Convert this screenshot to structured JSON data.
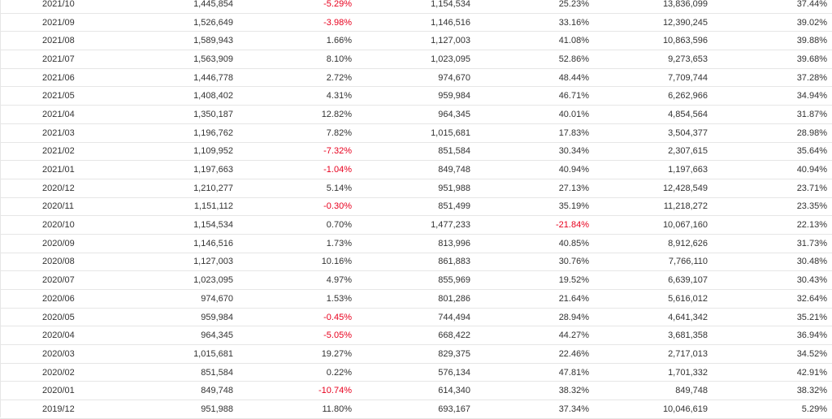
{
  "table": {
    "rows": [
      {
        "month": "2021/10",
        "revenue": "1,445,854",
        "mom": "-5.29%",
        "prev_year": "1,154,534",
        "yoy": "25.23%",
        "cumulative": "13,836,099",
        "cum_yoy": "37.44%"
      },
      {
        "month": "2021/09",
        "revenue": "1,526,649",
        "mom": "-3.98%",
        "prev_year": "1,146,516",
        "yoy": "33.16%",
        "cumulative": "12,390,245",
        "cum_yoy": "39.02%"
      },
      {
        "month": "2021/08",
        "revenue": "1,589,943",
        "mom": "1.66%",
        "prev_year": "1,127,003",
        "yoy": "41.08%",
        "cumulative": "10,863,596",
        "cum_yoy": "39.88%"
      },
      {
        "month": "2021/07",
        "revenue": "1,563,909",
        "mom": "8.10%",
        "prev_year": "1,023,095",
        "yoy": "52.86%",
        "cumulative": "9,273,653",
        "cum_yoy": "39.68%"
      },
      {
        "month": "2021/06",
        "revenue": "1,446,778",
        "mom": "2.72%",
        "prev_year": "974,670",
        "yoy": "48.44%",
        "cumulative": "7,709,744",
        "cum_yoy": "37.28%"
      },
      {
        "month": "2021/05",
        "revenue": "1,408,402",
        "mom": "4.31%",
        "prev_year": "959,984",
        "yoy": "46.71%",
        "cumulative": "6,262,966",
        "cum_yoy": "34.94%"
      },
      {
        "month": "2021/04",
        "revenue": "1,350,187",
        "mom": "12.82%",
        "prev_year": "964,345",
        "yoy": "40.01%",
        "cumulative": "4,854,564",
        "cum_yoy": "31.87%"
      },
      {
        "month": "2021/03",
        "revenue": "1,196,762",
        "mom": "7.82%",
        "prev_year": "1,015,681",
        "yoy": "17.83%",
        "cumulative": "3,504,377",
        "cum_yoy": "28.98%"
      },
      {
        "month": "2021/02",
        "revenue": "1,109,952",
        "mom": "-7.32%",
        "prev_year": "851,584",
        "yoy": "30.34%",
        "cumulative": "2,307,615",
        "cum_yoy": "35.64%"
      },
      {
        "month": "2021/01",
        "revenue": "1,197,663",
        "mom": "-1.04%",
        "prev_year": "849,748",
        "yoy": "40.94%",
        "cumulative": "1,197,663",
        "cum_yoy": "40.94%"
      },
      {
        "month": "2020/12",
        "revenue": "1,210,277",
        "mom": "5.14%",
        "prev_year": "951,988",
        "yoy": "27.13%",
        "cumulative": "12,428,549",
        "cum_yoy": "23.71%"
      },
      {
        "month": "2020/11",
        "revenue": "1,151,112",
        "mom": "-0.30%",
        "prev_year": "851,499",
        "yoy": "35.19%",
        "cumulative": "11,218,272",
        "cum_yoy": "23.35%"
      },
      {
        "month": "2020/10",
        "revenue": "1,154,534",
        "mom": "0.70%",
        "prev_year": "1,477,233",
        "yoy": "-21.84%",
        "cumulative": "10,067,160",
        "cum_yoy": "22.13%"
      },
      {
        "month": "2020/09",
        "revenue": "1,146,516",
        "mom": "1.73%",
        "prev_year": "813,996",
        "yoy": "40.85%",
        "cumulative": "8,912,626",
        "cum_yoy": "31.73%"
      },
      {
        "month": "2020/08",
        "revenue": "1,127,003",
        "mom": "10.16%",
        "prev_year": "861,883",
        "yoy": "30.76%",
        "cumulative": "7,766,110",
        "cum_yoy": "30.48%"
      },
      {
        "month": "2020/07",
        "revenue": "1,023,095",
        "mom": "4.97%",
        "prev_year": "855,969",
        "yoy": "19.52%",
        "cumulative": "6,639,107",
        "cum_yoy": "30.43%"
      },
      {
        "month": "2020/06",
        "revenue": "974,670",
        "mom": "1.53%",
        "prev_year": "801,286",
        "yoy": "21.64%",
        "cumulative": "5,616,012",
        "cum_yoy": "32.64%"
      },
      {
        "month": "2020/05",
        "revenue": "959,984",
        "mom": "-0.45%",
        "prev_year": "744,494",
        "yoy": "28.94%",
        "cumulative": "4,641,342",
        "cum_yoy": "35.21%"
      },
      {
        "month": "2020/04",
        "revenue": "964,345",
        "mom": "-5.05%",
        "prev_year": "668,422",
        "yoy": "44.27%",
        "cumulative": "3,681,358",
        "cum_yoy": "36.94%"
      },
      {
        "month": "2020/03",
        "revenue": "1,015,681",
        "mom": "19.27%",
        "prev_year": "829,375",
        "yoy": "22.46%",
        "cumulative": "2,717,013",
        "cum_yoy": "34.52%"
      },
      {
        "month": "2020/02",
        "revenue": "851,584",
        "mom": "0.22%",
        "prev_year": "576,134",
        "yoy": "47.81%",
        "cumulative": "1,701,332",
        "cum_yoy": "42.91%"
      },
      {
        "month": "2020/01",
        "revenue": "849,748",
        "mom": "-10.74%",
        "prev_year": "614,340",
        "yoy": "38.32%",
        "cumulative": "849,748",
        "cum_yoy": "38.32%"
      },
      {
        "month": "2019/12",
        "revenue": "951,988",
        "mom": "11.80%",
        "prev_year": "693,167",
        "yoy": "37.34%",
        "cumulative": "10,046,619",
        "cum_yoy": "5.29%"
      }
    ]
  },
  "colors": {
    "text": "#333333",
    "negative": "#e8001e",
    "divider": "#e6e6e6"
  }
}
